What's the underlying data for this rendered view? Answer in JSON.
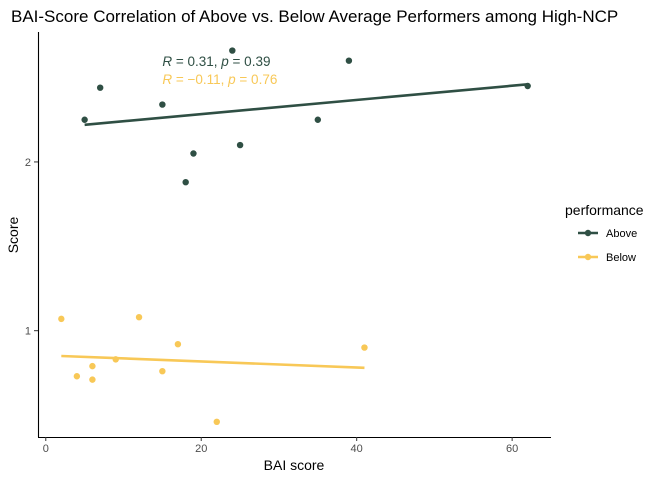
{
  "chart_data": {
    "type": "scatter",
    "title": "BAI-Score Correlation of Above vs. Below Average Performers among High-NCP",
    "xlabel": "BAI score",
    "ylabel": "Score",
    "xlim": [
      -1,
      65
    ],
    "ylim": [
      0.37,
      2.77
    ],
    "x_ticks": [
      0,
      20,
      40,
      60
    ],
    "y_ticks": [
      1,
      2
    ],
    "grid": false,
    "legend": {
      "title": "performance",
      "placement": "right",
      "entries": [
        "Above",
        "Below"
      ]
    },
    "series": [
      {
        "name": "Above",
        "color": "#2f4f44",
        "points": [
          {
            "x": 5,
            "y": 2.25
          },
          {
            "x": 7,
            "y": 2.44
          },
          {
            "x": 15,
            "y": 2.34
          },
          {
            "x": 18,
            "y": 1.88
          },
          {
            "x": 19,
            "y": 2.05
          },
          {
            "x": 24,
            "y": 2.66
          },
          {
            "x": 25,
            "y": 2.1
          },
          {
            "x": 35,
            "y": 2.25
          },
          {
            "x": 39,
            "y": 2.6
          },
          {
            "x": 62,
            "y": 2.45
          }
        ],
        "fit": {
          "x": [
            5,
            62
          ],
          "y": [
            2.22,
            2.46
          ]
        },
        "annotation": {
          "r_label": "R",
          "r_value": " = 0.31, ",
          "p_label": "p",
          "p_value": " = 0.39"
        }
      },
      {
        "name": "Below",
        "color": "#f8c857",
        "points": [
          {
            "x": 2,
            "y": 1.07
          },
          {
            "x": 4,
            "y": 0.73
          },
          {
            "x": 6,
            "y": 0.71
          },
          {
            "x": 6,
            "y": 0.79
          },
          {
            "x": 9,
            "y": 0.83
          },
          {
            "x": 12,
            "y": 1.08
          },
          {
            "x": 15,
            "y": 0.76
          },
          {
            "x": 17,
            "y": 0.92
          },
          {
            "x": 22,
            "y": 0.46
          },
          {
            "x": 41,
            "y": 0.9
          }
        ],
        "fit": {
          "x": [
            2,
            41
          ],
          "y": [
            0.85,
            0.78
          ]
        },
        "annotation": {
          "r_label": "R",
          "r_value": " = −0.11, ",
          "p_label": "p",
          "p_value": " = 0.76"
        }
      }
    ]
  }
}
